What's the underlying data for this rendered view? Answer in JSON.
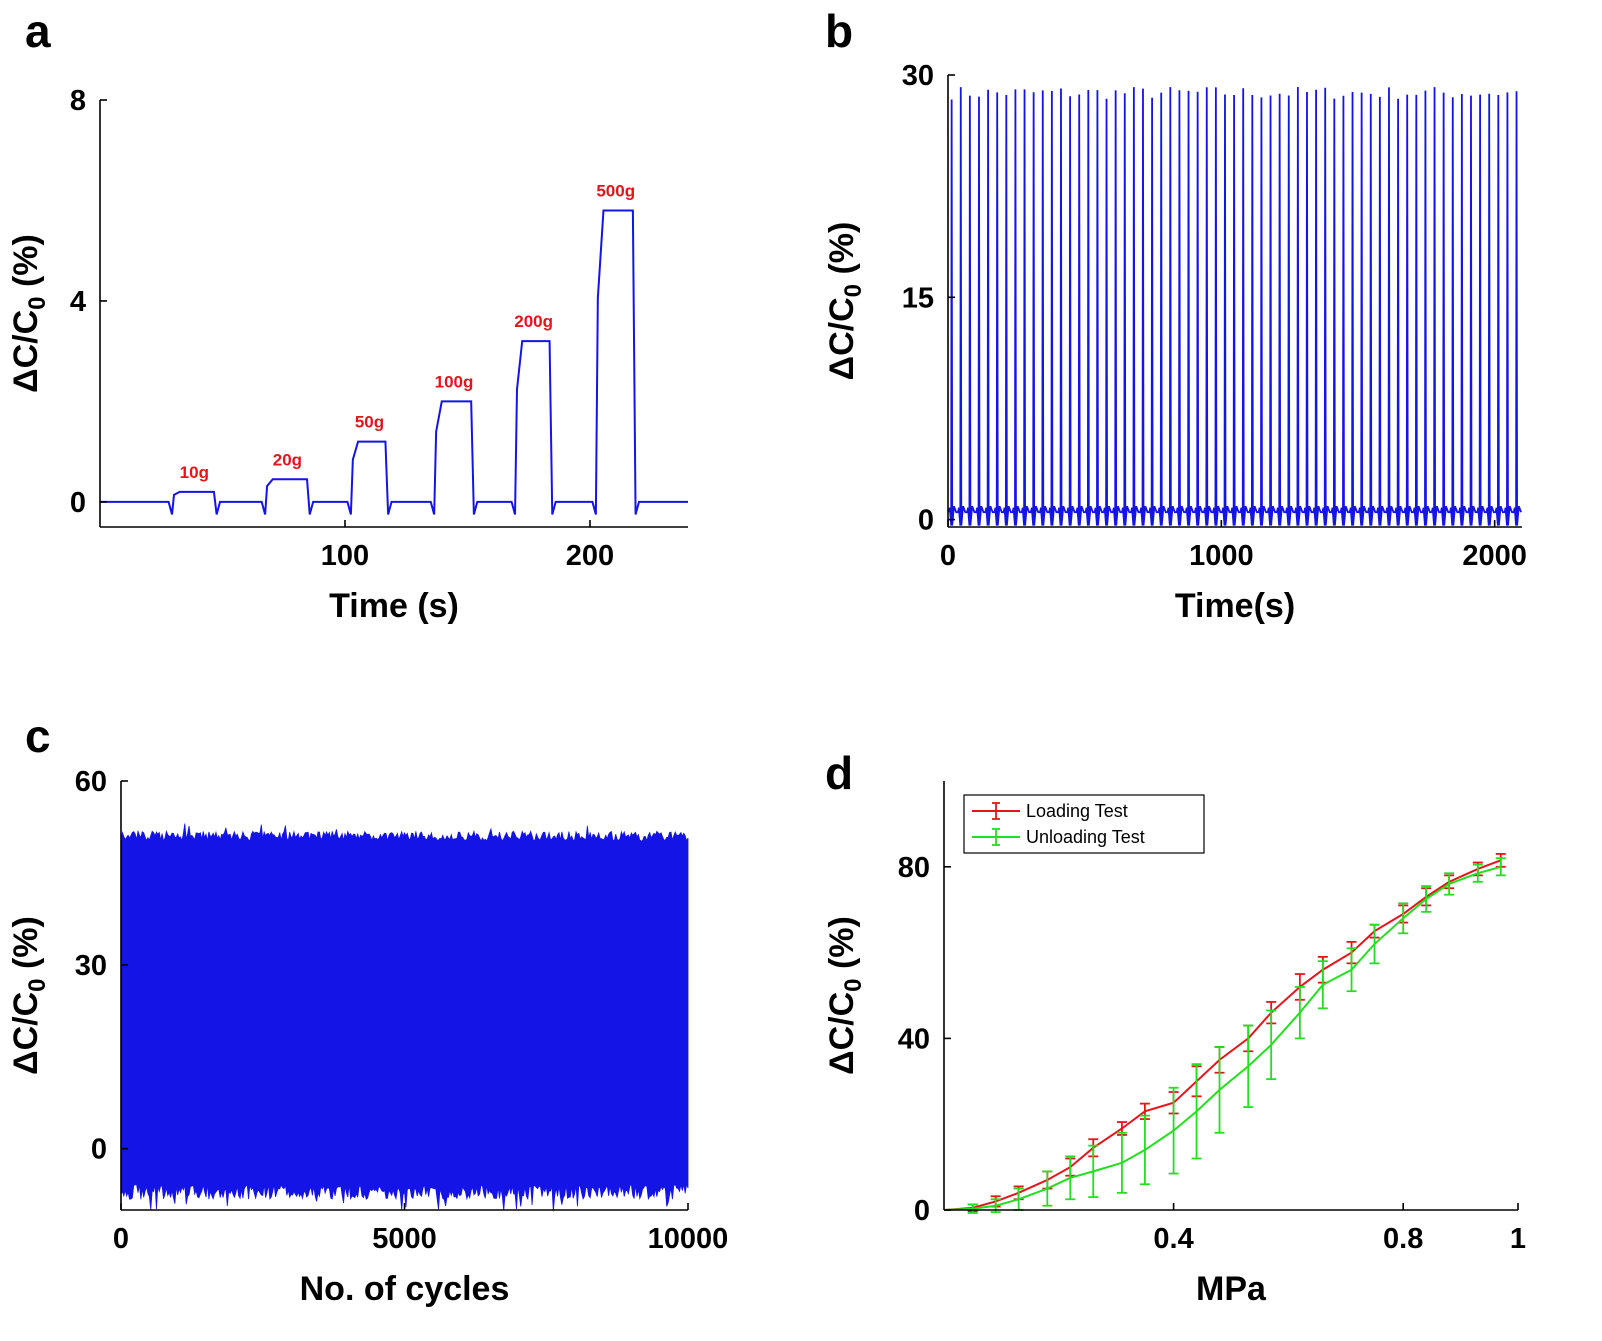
{
  "figure": {
    "panels": [
      "a",
      "b",
      "c",
      "d"
    ]
  },
  "colors": {
    "line_blue": "#1414e6",
    "annotation_red": "#e8141c",
    "loading_red": "#e8141c",
    "unloading_green": "#22e01e",
    "axis": "#000000"
  },
  "chart_data": [
    {
      "panel": "a",
      "type": "line",
      "title": "",
      "xlabel": "Time (s)",
      "ylabel_main": "ΔC/C",
      "ylabel_sub": "0",
      "ylabel_unit": " (%)",
      "xlim": [
        0,
        240
      ],
      "ylim": [
        -0.5,
        8
      ],
      "xticks": [
        100,
        200
      ],
      "xtick_labels": [
        "100",
        "200"
      ],
      "yticks": [
        0,
        4,
        8
      ],
      "ytick_labels": [
        "0",
        "4",
        "8"
      ],
      "steps": [
        {
          "label": "10g",
          "start": 30,
          "end": 47,
          "value": 0.2
        },
        {
          "label": "20g",
          "start": 68,
          "end": 85,
          "value": 0.45
        },
        {
          "label": "50g",
          "start": 103,
          "end": 117,
          "value": 1.2
        },
        {
          "label": "100g",
          "start": 137,
          "end": 152,
          "value": 2.0
        },
        {
          "label": "200g",
          "start": 170,
          "end": 184,
          "value": 3.2
        },
        {
          "label": "500g",
          "start": 203,
          "end": 218,
          "value": 5.8
        }
      ]
    },
    {
      "panel": "b",
      "type": "line",
      "title": "",
      "xlabel": "Time(s)",
      "ylabel_main": "ΔC/C",
      "ylabel_sub": "0",
      "ylabel_unit": " (%)",
      "xlim": [
        0,
        2100
      ],
      "ylim": [
        -0.5,
        30
      ],
      "xticks": [
        0,
        1000,
        2000
      ],
      "xtick_labels": [
        "0",
        "1000",
        "2000"
      ],
      "yticks": [
        0,
        15,
        30
      ],
      "ytick_labels": [
        "0",
        "15",
        "30"
      ],
      "cycles": 63,
      "peak_value": 28.8,
      "baseline_value": 0.5
    },
    {
      "panel": "c",
      "type": "area",
      "title": "",
      "xlabel": "No. of cycles",
      "ylabel_main": "ΔC/C",
      "ylabel_sub": "0",
      "ylabel_unit": " (%)",
      "xlim": [
        0,
        10000
      ],
      "ylim": [
        -10,
        60
      ],
      "xticks": [
        0,
        5000,
        10000
      ],
      "xtick_labels": [
        "0",
        "5000",
        "10000"
      ],
      "yticks": [
        0,
        30,
        60
      ],
      "ytick_labels": [
        "0",
        "30",
        "60"
      ],
      "envelope_upper": 51,
      "envelope_lower": -7
    },
    {
      "panel": "d",
      "type": "line",
      "title": "",
      "xlabel": "MPa",
      "ylabel_main": "ΔC/C",
      "ylabel_sub": "0",
      "ylabel_unit": " (%)",
      "xlim": [
        0,
        1
      ],
      "ylim": [
        0,
        100
      ],
      "xticks": [
        0.4,
        0.8,
        1
      ],
      "xtick_labels": [
        "0.4",
        "0.8",
        "1"
      ],
      "yticks": [
        0,
        40,
        80
      ],
      "ytick_labels": [
        "0",
        "40",
        "80"
      ],
      "legend_position": "top-left",
      "series": [
        {
          "name": "Loading Test",
          "color": "#e8141c",
          "x": [
            0.05,
            0.09,
            0.13,
            0.18,
            0.22,
            0.26,
            0.31,
            0.35,
            0.4,
            0.44,
            0.48,
            0.53,
            0.57,
            0.62,
            0.66,
            0.71,
            0.75,
            0.8,
            0.84,
            0.88,
            0.93,
            0.97
          ],
          "values": [
            0.5,
            2,
            4,
            7,
            10,
            14.5,
            19,
            23,
            25,
            30,
            35,
            40,
            46,
            52,
            56,
            60,
            65,
            69,
            73,
            76.5,
            79.5,
            81.5
          ],
          "errors": [
            0.8,
            1.2,
            1.5,
            2,
            2,
            2,
            1.5,
            1.8,
            2.5,
            3.5,
            3,
            3,
            2.5,
            3,
            3,
            2.5,
            1.5,
            2,
            2,
            1.5,
            1.5,
            1.5
          ]
        },
        {
          "name": "Unloading Test",
          "color": "#22e01e",
          "x": [
            0.05,
            0.09,
            0.13,
            0.18,
            0.22,
            0.26,
            0.31,
            0.35,
            0.4,
            0.44,
            0.48,
            0.53,
            0.57,
            0.62,
            0.66,
            0.71,
            0.75,
            0.8,
            0.84,
            0.88,
            0.93,
            0.97
          ],
          "values": [
            0.3,
            1,
            2.5,
            5,
            7.5,
            9,
            11,
            14,
            18.5,
            23,
            28,
            33.5,
            38.5,
            46,
            52.5,
            56,
            62,
            68,
            72.5,
            76,
            78.5,
            80
          ],
          "errors": [
            1,
            1.5,
            2.5,
            4,
            5,
            6,
            7,
            8,
            10,
            11,
            10,
            9.5,
            8,
            6,
            5.5,
            5,
            4.5,
            3.5,
            3,
            2.5,
            2,
            2
          ]
        }
      ]
    }
  ]
}
